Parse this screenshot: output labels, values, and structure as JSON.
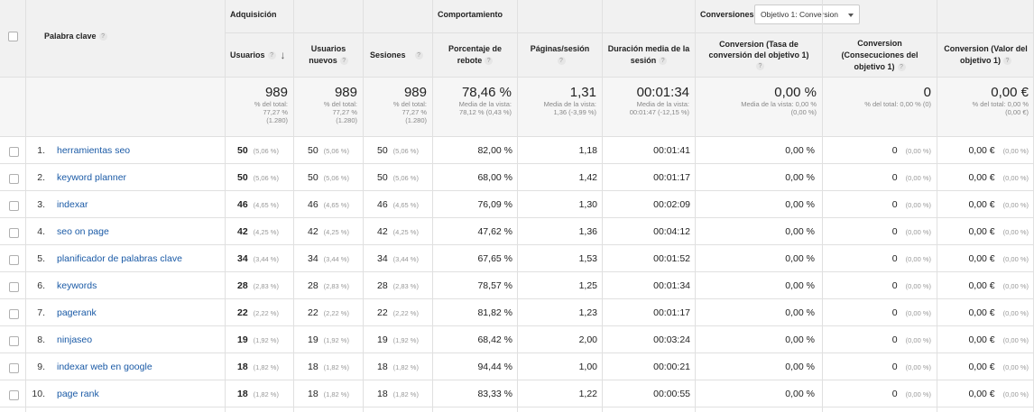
{
  "headers": {
    "keyword": "Palabra clave",
    "groups": {
      "acquisition": "Adquisición",
      "behavior": "Comportamiento",
      "conversions": "Conversiones"
    },
    "goal_select": "Objetivo 1: Conversion",
    "columns": {
      "users": "Usuarios",
      "new_users": "Usuarios nuevos",
      "sessions": "Sesiones",
      "bounce": "Porcentaje de rebote",
      "pages": "Páginas/sesión",
      "duration": "Duración media de la sesión",
      "conv_rate": "Conversion (Tasa de conversión del objetivo 1)",
      "conv_completions": "Conversion (Consecuciones del objetivo 1)",
      "conv_value": "Conversion (Valor del objetivo 1)"
    }
  },
  "totals": {
    "users": {
      "value": "989",
      "l1": "% del total:",
      "l2": "77,27 %",
      "l3": "(1.280)"
    },
    "new_users": {
      "value": "989",
      "l1": "% del total:",
      "l2": "77,27 %",
      "l3": "(1.280)"
    },
    "sessions": {
      "value": "989",
      "l1": "% del total:",
      "l2": "77,27 %",
      "l3": "(1.280)"
    },
    "bounce": {
      "value": "78,46 %",
      "l1": "Media de la vista:",
      "l2": "78,12 % (0,43 %)"
    },
    "pages": {
      "value": "1,31",
      "l1": "Media de la vista:",
      "l2": "1,36 (-3,99 %)"
    },
    "duration": {
      "value": "00:01:34",
      "l1": "Media de la vista:",
      "l2": "00:01:47 (-12,15 %)"
    },
    "conv_rate": {
      "value": "0,00 %",
      "l1": "Media de la vista: 0,00 %",
      "l2": "(0,00 %)"
    },
    "conv_completions": {
      "value": "0",
      "l1": "% del total: 0,00 % (0)"
    },
    "conv_value": {
      "value": "0,00 €",
      "l1": "% del total: 0,00 %",
      "l2": "(0,00 €)"
    }
  },
  "rows": [
    {
      "idx": "1.",
      "keyword": "herramientas seo",
      "users": "50",
      "users_pct": "(5,06 %)",
      "new_users": "50",
      "new_users_pct": "(5,06 %)",
      "sessions": "50",
      "sessions_pct": "(5,06 %)",
      "bounce": "82,00 %",
      "pages": "1,18",
      "duration": "00:01:41",
      "conv_rate": "0,00 %",
      "conv_completions": "0",
      "conv_completions_pct": "(0,00 %)",
      "conv_value": "0,00 €",
      "conv_value_pct": "(0,00 %)"
    },
    {
      "idx": "2.",
      "keyword": "keyword planner",
      "users": "50",
      "users_pct": "(5,06 %)",
      "new_users": "50",
      "new_users_pct": "(5,06 %)",
      "sessions": "50",
      "sessions_pct": "(5,06 %)",
      "bounce": "68,00 %",
      "pages": "1,42",
      "duration": "00:01:17",
      "conv_rate": "0,00 %",
      "conv_completions": "0",
      "conv_completions_pct": "(0,00 %)",
      "conv_value": "0,00 €",
      "conv_value_pct": "(0,00 %)"
    },
    {
      "idx": "3.",
      "keyword": "indexar",
      "users": "46",
      "users_pct": "(4,65 %)",
      "new_users": "46",
      "new_users_pct": "(4,65 %)",
      "sessions": "46",
      "sessions_pct": "(4,65 %)",
      "bounce": "76,09 %",
      "pages": "1,30",
      "duration": "00:02:09",
      "conv_rate": "0,00 %",
      "conv_completions": "0",
      "conv_completions_pct": "(0,00 %)",
      "conv_value": "0,00 €",
      "conv_value_pct": "(0,00 %)"
    },
    {
      "idx": "4.",
      "keyword": "seo on page",
      "users": "42",
      "users_pct": "(4,25 %)",
      "new_users": "42",
      "new_users_pct": "(4,25 %)",
      "sessions": "42",
      "sessions_pct": "(4,25 %)",
      "bounce": "47,62 %",
      "pages": "1,36",
      "duration": "00:04:12",
      "conv_rate": "0,00 %",
      "conv_completions": "0",
      "conv_completions_pct": "(0,00 %)",
      "conv_value": "0,00 €",
      "conv_value_pct": "(0,00 %)"
    },
    {
      "idx": "5.",
      "keyword": "planificador de palabras clave",
      "users": "34",
      "users_pct": "(3,44 %)",
      "new_users": "34",
      "new_users_pct": "(3,44 %)",
      "sessions": "34",
      "sessions_pct": "(3,44 %)",
      "bounce": "67,65 %",
      "pages": "1,53",
      "duration": "00:01:52",
      "conv_rate": "0,00 %",
      "conv_completions": "0",
      "conv_completions_pct": "(0,00 %)",
      "conv_value": "0,00 €",
      "conv_value_pct": "(0,00 %)"
    },
    {
      "idx": "6.",
      "keyword": "keywords",
      "users": "28",
      "users_pct": "(2,83 %)",
      "new_users": "28",
      "new_users_pct": "(2,83 %)",
      "sessions": "28",
      "sessions_pct": "(2,83 %)",
      "bounce": "78,57 %",
      "pages": "1,25",
      "duration": "00:01:34",
      "conv_rate": "0,00 %",
      "conv_completions": "0",
      "conv_completions_pct": "(0,00 %)",
      "conv_value": "0,00 €",
      "conv_value_pct": "(0,00 %)"
    },
    {
      "idx": "7.",
      "keyword": "pagerank",
      "users": "22",
      "users_pct": "(2,22 %)",
      "new_users": "22",
      "new_users_pct": "(2,22 %)",
      "sessions": "22",
      "sessions_pct": "(2,22 %)",
      "bounce": "81,82 %",
      "pages": "1,23",
      "duration": "00:01:17",
      "conv_rate": "0,00 %",
      "conv_completions": "0",
      "conv_completions_pct": "(0,00 %)",
      "conv_value": "0,00 €",
      "conv_value_pct": "(0,00 %)"
    },
    {
      "idx": "8.",
      "keyword": "ninjaseo",
      "users": "19",
      "users_pct": "(1,92 %)",
      "new_users": "19",
      "new_users_pct": "(1,92 %)",
      "sessions": "19",
      "sessions_pct": "(1,92 %)",
      "bounce": "68,42 %",
      "pages": "2,00",
      "duration": "00:03:24",
      "conv_rate": "0,00 %",
      "conv_completions": "0",
      "conv_completions_pct": "(0,00 %)",
      "conv_value": "0,00 €",
      "conv_value_pct": "(0,00 %)"
    },
    {
      "idx": "9.",
      "keyword": "indexar web en google",
      "users": "18",
      "users_pct": "(1,82 %)",
      "new_users": "18",
      "new_users_pct": "(1,82 %)",
      "sessions": "18",
      "sessions_pct": "(1,82 %)",
      "bounce": "94,44 %",
      "pages": "1,00",
      "duration": "00:00:21",
      "conv_rate": "0,00 %",
      "conv_completions": "0",
      "conv_completions_pct": "(0,00 %)",
      "conv_value": "0,00 €",
      "conv_value_pct": "(0,00 %)"
    },
    {
      "idx": "10.",
      "keyword": "page rank",
      "users": "18",
      "users_pct": "(1,82 %)",
      "new_users": "18",
      "new_users_pct": "(1,82 %)",
      "sessions": "18",
      "sessions_pct": "(1,82 %)",
      "bounce": "83,33 %",
      "pages": "1,22",
      "duration": "00:00:55",
      "conv_rate": "0,00 %",
      "conv_completions": "0",
      "conv_completions_pct": "(0,00 %)",
      "conv_value": "0,00 €",
      "conv_value_pct": "(0,00 %)"
    }
  ]
}
